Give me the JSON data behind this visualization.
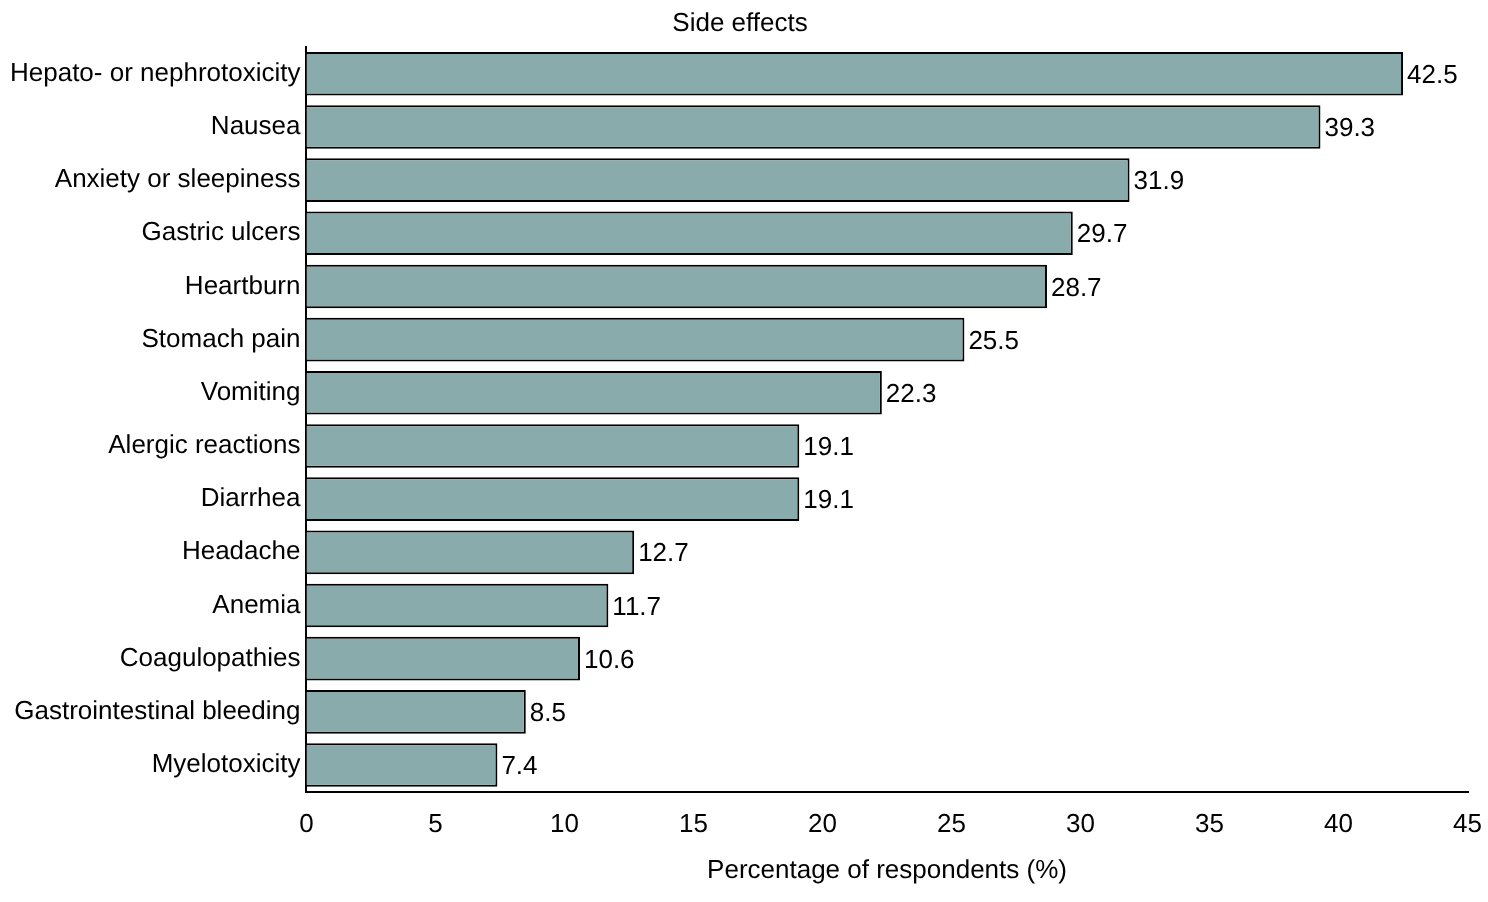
{
  "chart_data": {
    "type": "bar",
    "orientation": "horizontal",
    "title": "Side effects",
    "xlabel": "Percentage of respondents (%)",
    "categories": [
      "Hepato- or nephrotoxicity",
      "Nausea",
      "Anxiety or sleepiness",
      "Gastric ulcers",
      "Heartburn",
      "Stomach pain",
      "Vomiting",
      "Alergic reactions",
      "Diarrhea",
      "Headache",
      "Anemia",
      "Coagulopathies",
      "Gastrointestinal bleeding",
      "Myelotoxicity"
    ],
    "values": [
      42.5,
      39.3,
      31.9,
      29.7,
      28.7,
      25.5,
      22.3,
      19.1,
      19.1,
      12.7,
      11.7,
      10.6,
      8.5,
      7.4
    ],
    "color": "#8aabab",
    "xlim": [
      0,
      45
    ],
    "xticks": [
      0,
      5,
      10,
      15,
      20,
      25,
      30,
      35,
      40,
      45
    ],
    "data_labels": true,
    "grid": false,
    "legend": false
  }
}
